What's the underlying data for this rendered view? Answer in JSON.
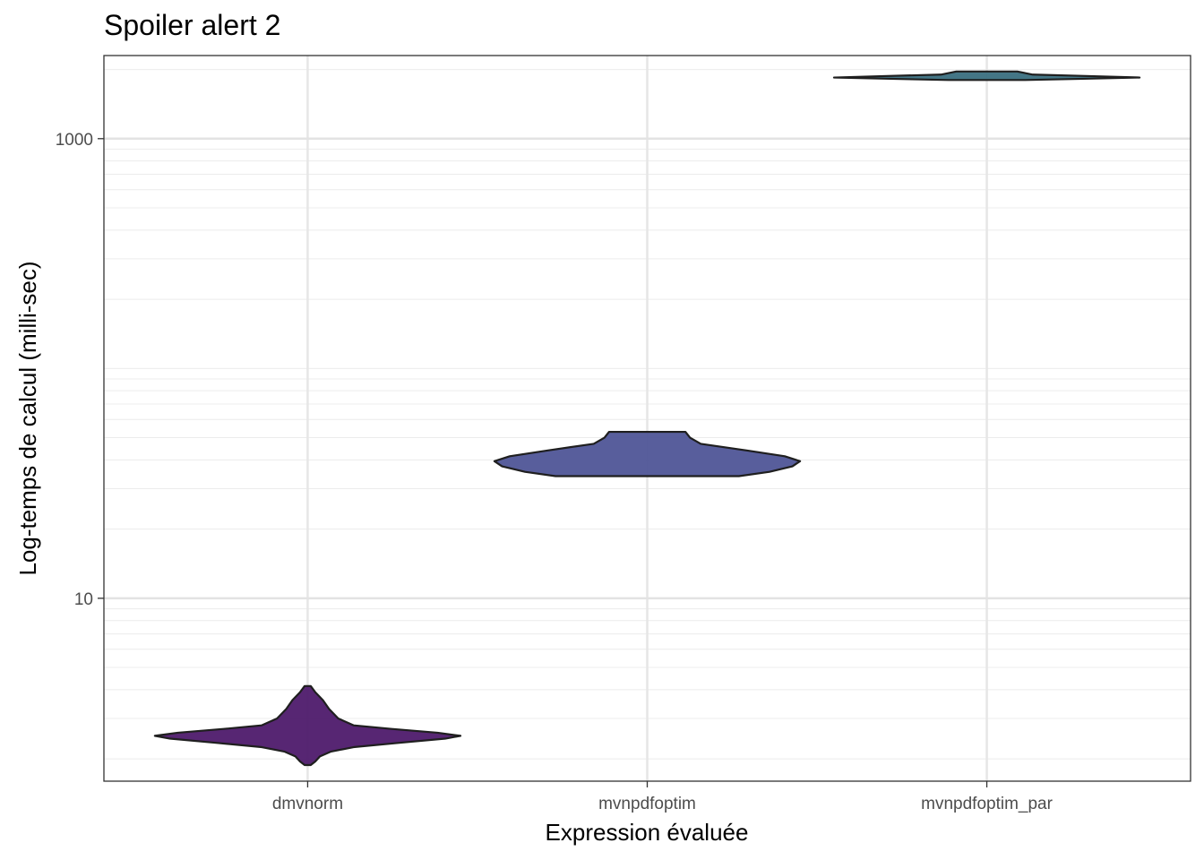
{
  "chart_data": {
    "type": "violin",
    "title": "Spoiler alert 2",
    "xlabel": "Expression évaluée",
    "ylabel": "Log-temps de calcul (milli-sec)",
    "y_scale": "log10",
    "ylim": [
      1.6,
      2300
    ],
    "y_ticks": [
      10,
      1000
    ],
    "y_tick_labels": [
      "10",
      "1000"
    ],
    "grid": true,
    "legend": "none",
    "categories": [
      "dmvnorm",
      "mvnpdfoptim",
      "mvnpdfoptim_par"
    ],
    "series": [
      {
        "category": "dmvnorm",
        "color": "#4e1a6b",
        "min": 1.88,
        "max": 4.15,
        "profile": [
          [
            1.88,
            0.02
          ],
          [
            1.95,
            0.05
          ],
          [
            2.05,
            0.08
          ],
          [
            2.15,
            0.15
          ],
          [
            2.25,
            0.3
          ],
          [
            2.35,
            0.6
          ],
          [
            2.45,
            0.9
          ],
          [
            2.52,
            1.0
          ],
          [
            2.6,
            0.85
          ],
          [
            2.7,
            0.55
          ],
          [
            2.8,
            0.3
          ],
          [
            3.0,
            0.2
          ],
          [
            3.3,
            0.14
          ],
          [
            3.6,
            0.1
          ],
          [
            3.9,
            0.05
          ],
          [
            4.15,
            0.02
          ]
        ]
      },
      {
        "category": "mvnpdfoptim",
        "color": "#4f5597",
        "min": 34.0,
        "max": 53.0,
        "profile": [
          [
            34.0,
            0.6
          ],
          [
            35.5,
            0.8
          ],
          [
            37.5,
            0.95
          ],
          [
            39.5,
            1.0
          ],
          [
            41.5,
            0.9
          ],
          [
            44.0,
            0.65
          ],
          [
            47.0,
            0.35
          ],
          [
            50.0,
            0.28
          ],
          [
            53.0,
            0.25
          ]
        ]
      },
      {
        "category": "mvnpdfoptim_par",
        "color": "#3a6f80",
        "min": 1800,
        "max": 1960,
        "profile": [
          [
            1800,
            0.25
          ],
          [
            1820,
            0.6
          ],
          [
            1845,
            1.0
          ],
          [
            1870,
            0.7
          ],
          [
            1900,
            0.3
          ],
          [
            1930,
            0.25
          ],
          [
            1960,
            0.2
          ]
        ]
      }
    ]
  }
}
